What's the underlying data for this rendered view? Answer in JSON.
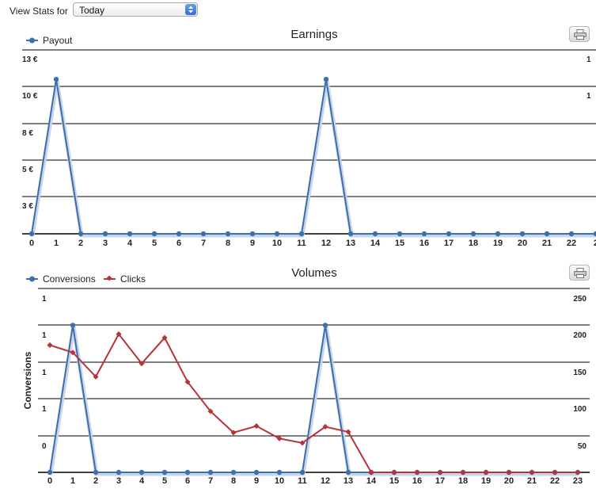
{
  "header": {
    "view_stats_label": "View Stats for",
    "period_value": "Today"
  },
  "icons": {
    "select_arrow": "updown-arrow-icon",
    "print": "printer-icon"
  },
  "colors": {
    "payout": "#3c6fb0",
    "conversions": "#3c6fb0",
    "clicks": "#b8323a",
    "grid": "#000000"
  },
  "chart_data": [
    {
      "type": "line",
      "title": "Earnings",
      "legend": [
        "Payout"
      ],
      "legend_position": "top-left",
      "xlabel": "",
      "ylabel": "",
      "x": [
        "0",
        "1",
        "2",
        "3",
        "4",
        "5",
        "6",
        "7",
        "8",
        "9",
        "10",
        "11",
        "12",
        "13",
        "14",
        "15",
        "16",
        "17",
        "18",
        "19",
        "20",
        "21",
        "22",
        "2"
      ],
      "y_ticks": [
        "13 €",
        "10 €",
        "8 €",
        "5 €",
        "3 €"
      ],
      "right_ticks": [
        "1",
        "1"
      ],
      "ylim": [
        0,
        12.5
      ],
      "series": [
        {
          "name": "Payout",
          "values": [
            0,
            10.5,
            0,
            0,
            0,
            0,
            0,
            0,
            0,
            0,
            0,
            0,
            10.5,
            0,
            0,
            0,
            0,
            0,
            0,
            0,
            0,
            0,
            0,
            0
          ]
        }
      ]
    },
    {
      "type": "line",
      "title": "Volumes",
      "legend": [
        "Conversions",
        "Clicks"
      ],
      "legend_position": "top-left",
      "xlabel": "",
      "ylabel": "Conversions",
      "x": [
        "0",
        "1",
        "2",
        "3",
        "4",
        "5",
        "6",
        "7",
        "8",
        "9",
        "10",
        "11",
        "12",
        "13",
        "14",
        "15",
        "16",
        "17",
        "18",
        "19",
        "20",
        "21",
        "22",
        "23"
      ],
      "y_ticks_left": [
        "1",
        "1",
        "1",
        "1",
        "0"
      ],
      "y_ticks_right": [
        "250",
        "200",
        "150",
        "100",
        "50"
      ],
      "ylim_right": [
        0,
        250
      ],
      "ylim_left": [
        0,
        1.25
      ],
      "series": [
        {
          "name": "Conversions",
          "axis": "left",
          "values": [
            0,
            1,
            0,
            0,
            0,
            0,
            0,
            0,
            0,
            0,
            0,
            0,
            1,
            0,
            0,
            0,
            0,
            0,
            0,
            0,
            0,
            0,
            0,
            0
          ]
        },
        {
          "name": "Clicks",
          "axis": "right",
          "values": [
            173,
            163,
            130,
            188,
            148,
            183,
            123,
            83,
            54,
            63,
            46,
            40,
            62,
            55,
            0,
            0,
            0,
            0,
            0,
            0,
            0,
            0,
            0,
            0
          ]
        }
      ]
    }
  ]
}
